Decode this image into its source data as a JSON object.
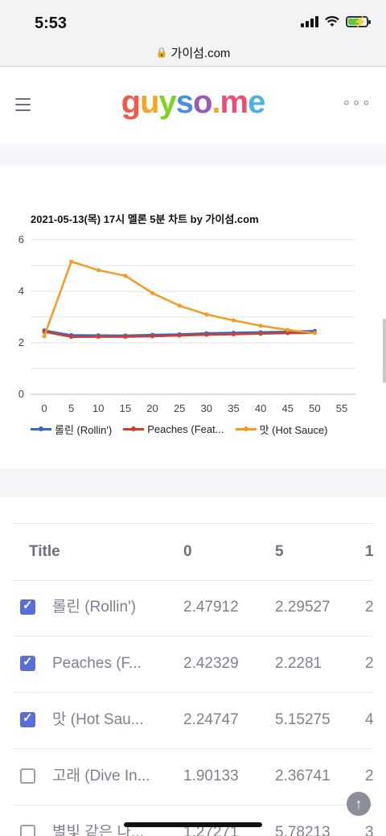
{
  "status": {
    "time": "5:53",
    "battery_level": 0.7
  },
  "browser": {
    "url": "가이섬.com"
  },
  "header": {
    "logo_letters": [
      "g",
      "u",
      "y",
      "s",
      "o",
      ".",
      "m",
      "e"
    ],
    "logo_colors": [
      "#f15a4a",
      "#f5a623",
      "#7ed321",
      "#4a90e2",
      "#9b59b6",
      "#f5a623",
      "#e94e77",
      "#4ab3e2"
    ]
  },
  "chart_data": {
    "type": "line",
    "title": "2021-05-13(목) 17시 멜론 5분 차트 by 가이섬.com",
    "x": [
      0,
      5,
      10,
      15,
      20,
      25,
      30,
      35,
      40,
      45,
      50
    ],
    "xlim": [
      0,
      55
    ],
    "ylim": [
      0,
      6
    ],
    "x_ticks": [
      "0",
      "5",
      "10",
      "15",
      "20",
      "25",
      "30",
      "35",
      "40",
      "45",
      "50",
      "55"
    ],
    "y_ticks": [
      "0",
      "2",
      "4",
      "6"
    ],
    "grid": true,
    "legend_position": "bottom",
    "series": [
      {
        "name": "롤린 (Rollin')",
        "color": "#3a66c4",
        "values": [
          2.47912,
          2.29527,
          2.29,
          2.28,
          2.31,
          2.33,
          2.37,
          2.39,
          2.41,
          2.43,
          2.46
        ]
      },
      {
        "name": "Peaches (Feat...",
        "color": "#d1402a",
        "values": [
          2.42329,
          2.2281,
          2.23,
          2.23,
          2.25,
          2.28,
          2.31,
          2.33,
          2.35,
          2.37,
          2.39
        ]
      },
      {
        "name": "맛 (Hot Sauce)",
        "color": "#f39b22",
        "values": [
          2.24747,
          5.15275,
          4.82,
          4.6,
          3.93,
          3.44,
          3.1,
          2.87,
          2.66,
          2.5,
          2.37
        ]
      }
    ]
  },
  "table": {
    "headers": [
      "Title",
      "0",
      "5",
      "1"
    ],
    "rows": [
      {
        "checked": true,
        "title": "롤린 (Rollin')",
        "v0": "2.47912",
        "v5": "2.29527",
        "v10": "2"
      },
      {
        "checked": true,
        "title": "Peaches (F...",
        "v0": "2.42329",
        "v5": "2.2281",
        "v10": "2"
      },
      {
        "checked": true,
        "title": "맛 (Hot Sau...",
        "v0": "2.24747",
        "v5": "5.15275",
        "v10": "4"
      },
      {
        "checked": false,
        "title": "고래 (Dive In...",
        "v0": "1.90133",
        "v5": "2.36741",
        "v10": "2"
      },
      {
        "checked": false,
        "title": "별빛 같은 나...",
        "v0": "1.27271",
        "v5": "5.78213",
        "v10": "3"
      }
    ]
  }
}
